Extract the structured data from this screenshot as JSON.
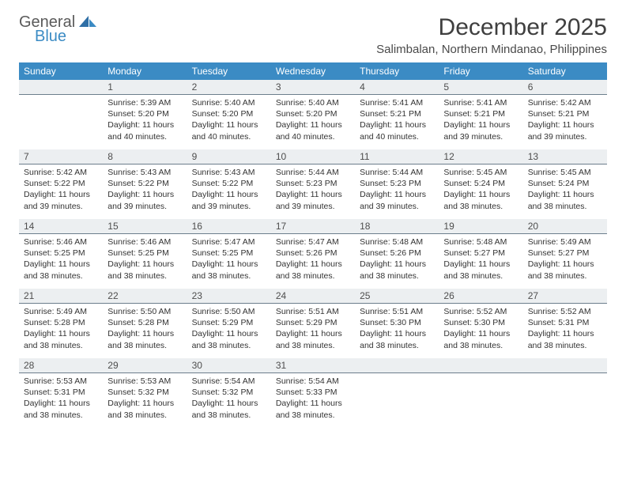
{
  "logo": {
    "line1": "General",
    "line2": "Blue"
  },
  "title": "December 2025",
  "location": "Salimbalan, Northern Mindanao, Philippines",
  "colors": {
    "header_bg": "#3b8bc4",
    "header_fg": "#ffffff",
    "daynum_bg": "#eceff1",
    "daynum_border": "#6c7e8c",
    "text": "#333333",
    "logo_gray": "#5a5a5a",
    "logo_blue": "#3b8bc4"
  },
  "weekdays": [
    "Sunday",
    "Monday",
    "Tuesday",
    "Wednesday",
    "Thursday",
    "Friday",
    "Saturday"
  ],
  "weeks": [
    [
      null,
      {
        "n": "1",
        "sr": "5:39 AM",
        "ss": "5:20 PM",
        "dl": "11 hours and 40 minutes."
      },
      {
        "n": "2",
        "sr": "5:40 AM",
        "ss": "5:20 PM",
        "dl": "11 hours and 40 minutes."
      },
      {
        "n": "3",
        "sr": "5:40 AM",
        "ss": "5:20 PM",
        "dl": "11 hours and 40 minutes."
      },
      {
        "n": "4",
        "sr": "5:41 AM",
        "ss": "5:21 PM",
        "dl": "11 hours and 40 minutes."
      },
      {
        "n": "5",
        "sr": "5:41 AM",
        "ss": "5:21 PM",
        "dl": "11 hours and 39 minutes."
      },
      {
        "n": "6",
        "sr": "5:42 AM",
        "ss": "5:21 PM",
        "dl": "11 hours and 39 minutes."
      }
    ],
    [
      {
        "n": "7",
        "sr": "5:42 AM",
        "ss": "5:22 PM",
        "dl": "11 hours and 39 minutes."
      },
      {
        "n": "8",
        "sr": "5:43 AM",
        "ss": "5:22 PM",
        "dl": "11 hours and 39 minutes."
      },
      {
        "n": "9",
        "sr": "5:43 AM",
        "ss": "5:22 PM",
        "dl": "11 hours and 39 minutes."
      },
      {
        "n": "10",
        "sr": "5:44 AM",
        "ss": "5:23 PM",
        "dl": "11 hours and 39 minutes."
      },
      {
        "n": "11",
        "sr": "5:44 AM",
        "ss": "5:23 PM",
        "dl": "11 hours and 39 minutes."
      },
      {
        "n": "12",
        "sr": "5:45 AM",
        "ss": "5:24 PM",
        "dl": "11 hours and 38 minutes."
      },
      {
        "n": "13",
        "sr": "5:45 AM",
        "ss": "5:24 PM",
        "dl": "11 hours and 38 minutes."
      }
    ],
    [
      {
        "n": "14",
        "sr": "5:46 AM",
        "ss": "5:25 PM",
        "dl": "11 hours and 38 minutes."
      },
      {
        "n": "15",
        "sr": "5:46 AM",
        "ss": "5:25 PM",
        "dl": "11 hours and 38 minutes."
      },
      {
        "n": "16",
        "sr": "5:47 AM",
        "ss": "5:25 PM",
        "dl": "11 hours and 38 minutes."
      },
      {
        "n": "17",
        "sr": "5:47 AM",
        "ss": "5:26 PM",
        "dl": "11 hours and 38 minutes."
      },
      {
        "n": "18",
        "sr": "5:48 AM",
        "ss": "5:26 PM",
        "dl": "11 hours and 38 minutes."
      },
      {
        "n": "19",
        "sr": "5:48 AM",
        "ss": "5:27 PM",
        "dl": "11 hours and 38 minutes."
      },
      {
        "n": "20",
        "sr": "5:49 AM",
        "ss": "5:27 PM",
        "dl": "11 hours and 38 minutes."
      }
    ],
    [
      {
        "n": "21",
        "sr": "5:49 AM",
        "ss": "5:28 PM",
        "dl": "11 hours and 38 minutes."
      },
      {
        "n": "22",
        "sr": "5:50 AM",
        "ss": "5:28 PM",
        "dl": "11 hours and 38 minutes."
      },
      {
        "n": "23",
        "sr": "5:50 AM",
        "ss": "5:29 PM",
        "dl": "11 hours and 38 minutes."
      },
      {
        "n": "24",
        "sr": "5:51 AM",
        "ss": "5:29 PM",
        "dl": "11 hours and 38 minutes."
      },
      {
        "n": "25",
        "sr": "5:51 AM",
        "ss": "5:30 PM",
        "dl": "11 hours and 38 minutes."
      },
      {
        "n": "26",
        "sr": "5:52 AM",
        "ss": "5:30 PM",
        "dl": "11 hours and 38 minutes."
      },
      {
        "n": "27",
        "sr": "5:52 AM",
        "ss": "5:31 PM",
        "dl": "11 hours and 38 minutes."
      }
    ],
    [
      {
        "n": "28",
        "sr": "5:53 AM",
        "ss": "5:31 PM",
        "dl": "11 hours and 38 minutes."
      },
      {
        "n": "29",
        "sr": "5:53 AM",
        "ss": "5:32 PM",
        "dl": "11 hours and 38 minutes."
      },
      {
        "n": "30",
        "sr": "5:54 AM",
        "ss": "5:32 PM",
        "dl": "11 hours and 38 minutes."
      },
      {
        "n": "31",
        "sr": "5:54 AM",
        "ss": "5:33 PM",
        "dl": "11 hours and 38 minutes."
      },
      null,
      null,
      null
    ]
  ],
  "labels": {
    "sunrise": "Sunrise:",
    "sunset": "Sunset:",
    "daylight": "Daylight:"
  }
}
